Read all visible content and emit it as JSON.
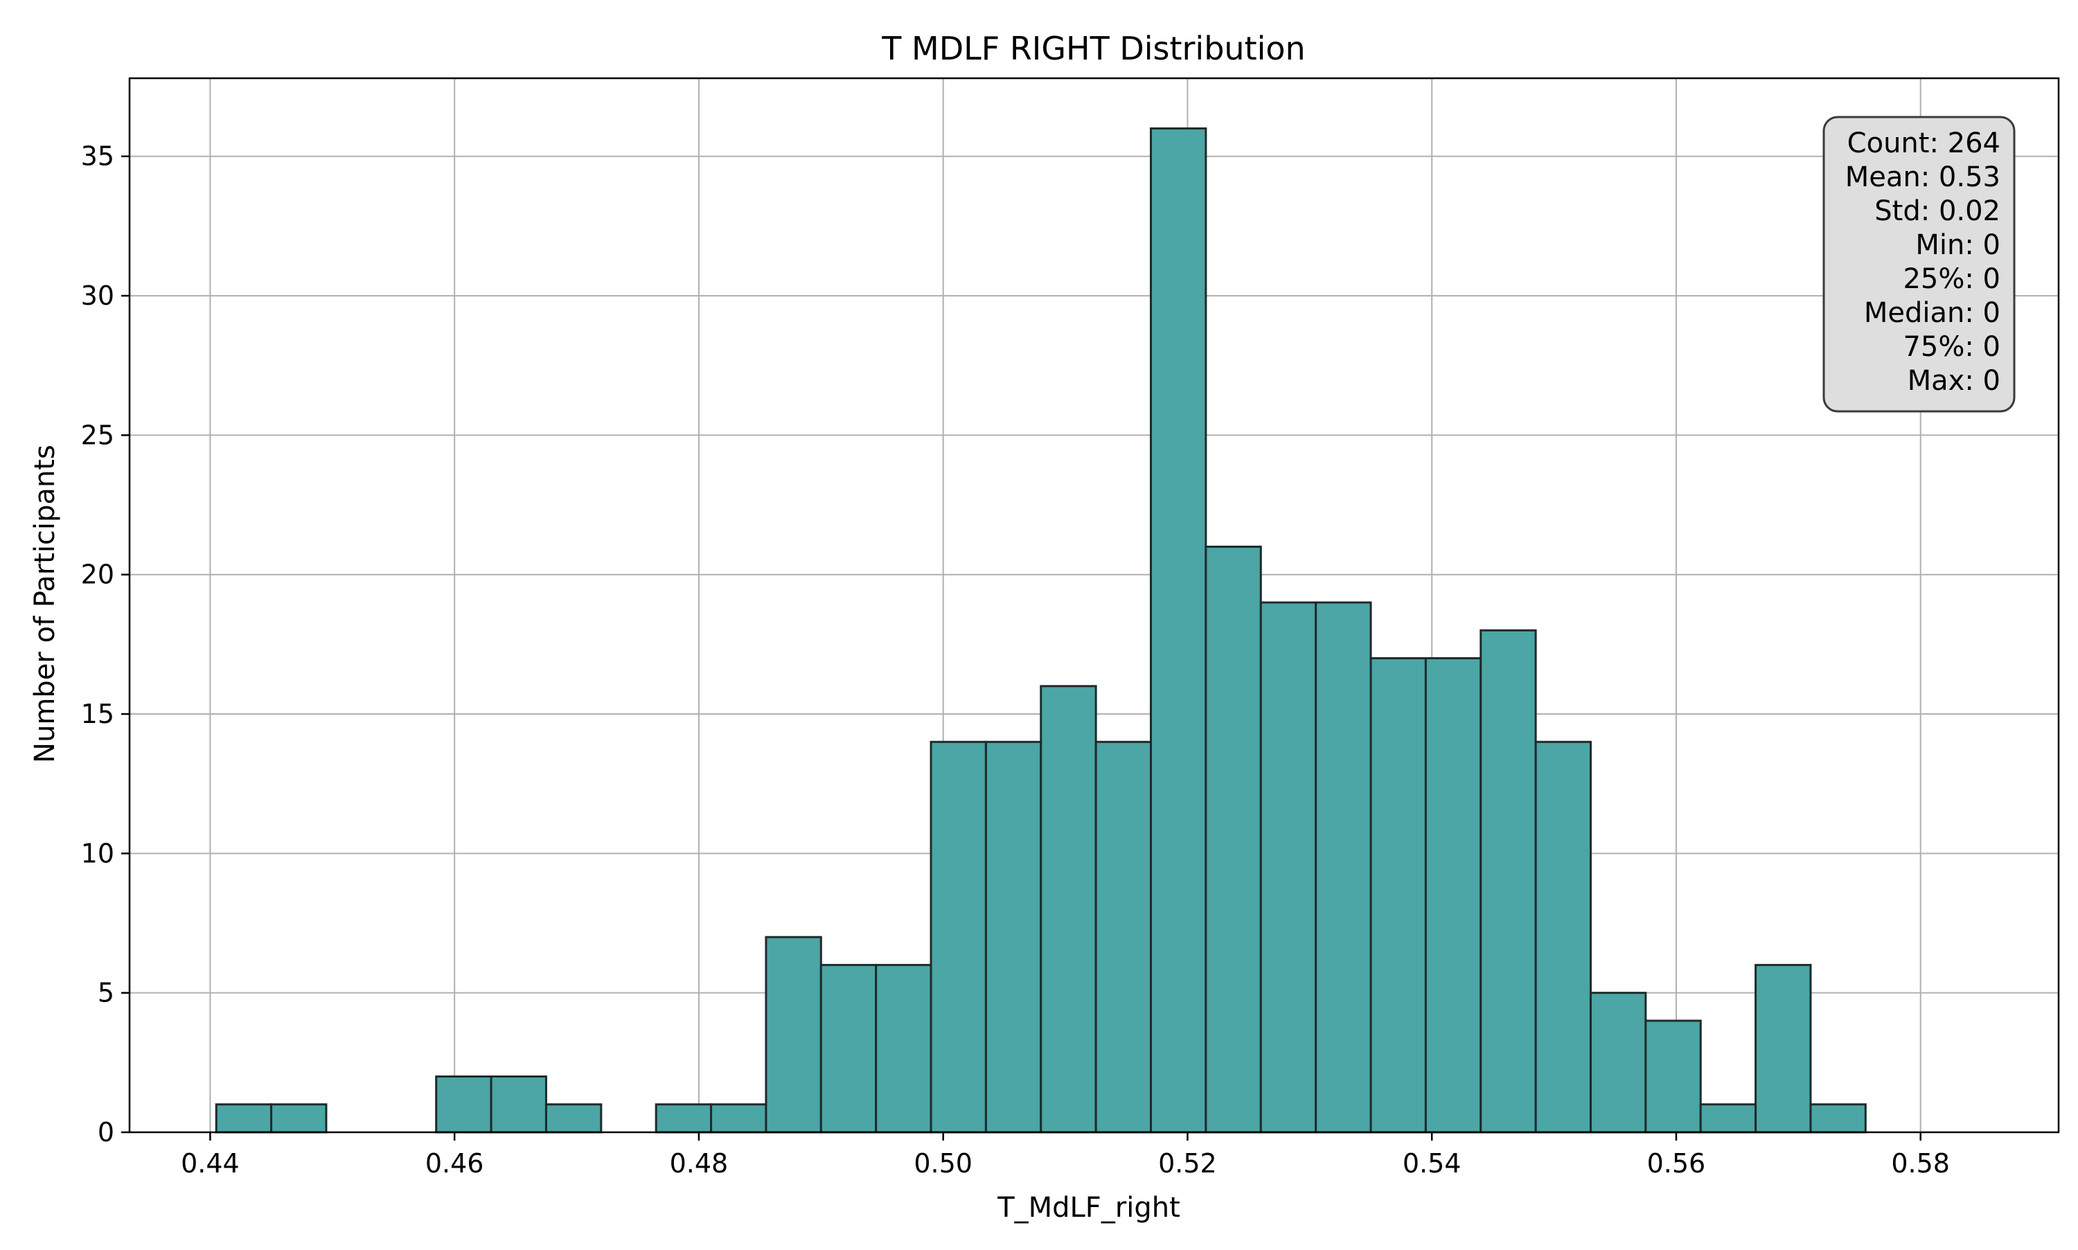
{
  "chart_data": {
    "type": "bar",
    "title": "T MDLF RIGHT  Distribution",
    "xlabel": "T_MdLF_right",
    "ylabel": "Number of Participants",
    "bin_start": 0.4405,
    "bin_width": 0.0045,
    "values": [
      1,
      1,
      0,
      0,
      2,
      2,
      1,
      0,
      1,
      1,
      7,
      6,
      6,
      14,
      14,
      16,
      14,
      36,
      21,
      19,
      19,
      17,
      17,
      18,
      14,
      5,
      4,
      1,
      6,
      1
    ],
    "xlim": [
      0.4334,
      0.5913
    ],
    "ylim": [
      0,
      37.8
    ],
    "xticks": [
      0.44,
      0.46,
      0.48,
      0.5,
      0.52,
      0.54,
      0.56,
      0.58
    ],
    "xtick_labels": [
      "0.44",
      "0.46",
      "0.48",
      "0.50",
      "0.52",
      "0.54",
      "0.56",
      "0.58"
    ],
    "yticks": [
      0,
      5,
      10,
      15,
      20,
      25,
      30,
      35
    ],
    "ytick_labels": [
      "0",
      "5",
      "10",
      "15",
      "20",
      "25",
      "30",
      "35"
    ],
    "grid": true,
    "bar_color": "#4ba6a5",
    "edge_color": "#1f2a2a",
    "stats_box": {
      "position": "top-right",
      "lines": [
        "Count: 264",
        "Mean: 0.53",
        "Std: 0.02",
        "Min: 0",
        "25%: 0",
        "Median: 0",
        "75%: 0",
        "Max: 0"
      ]
    }
  }
}
